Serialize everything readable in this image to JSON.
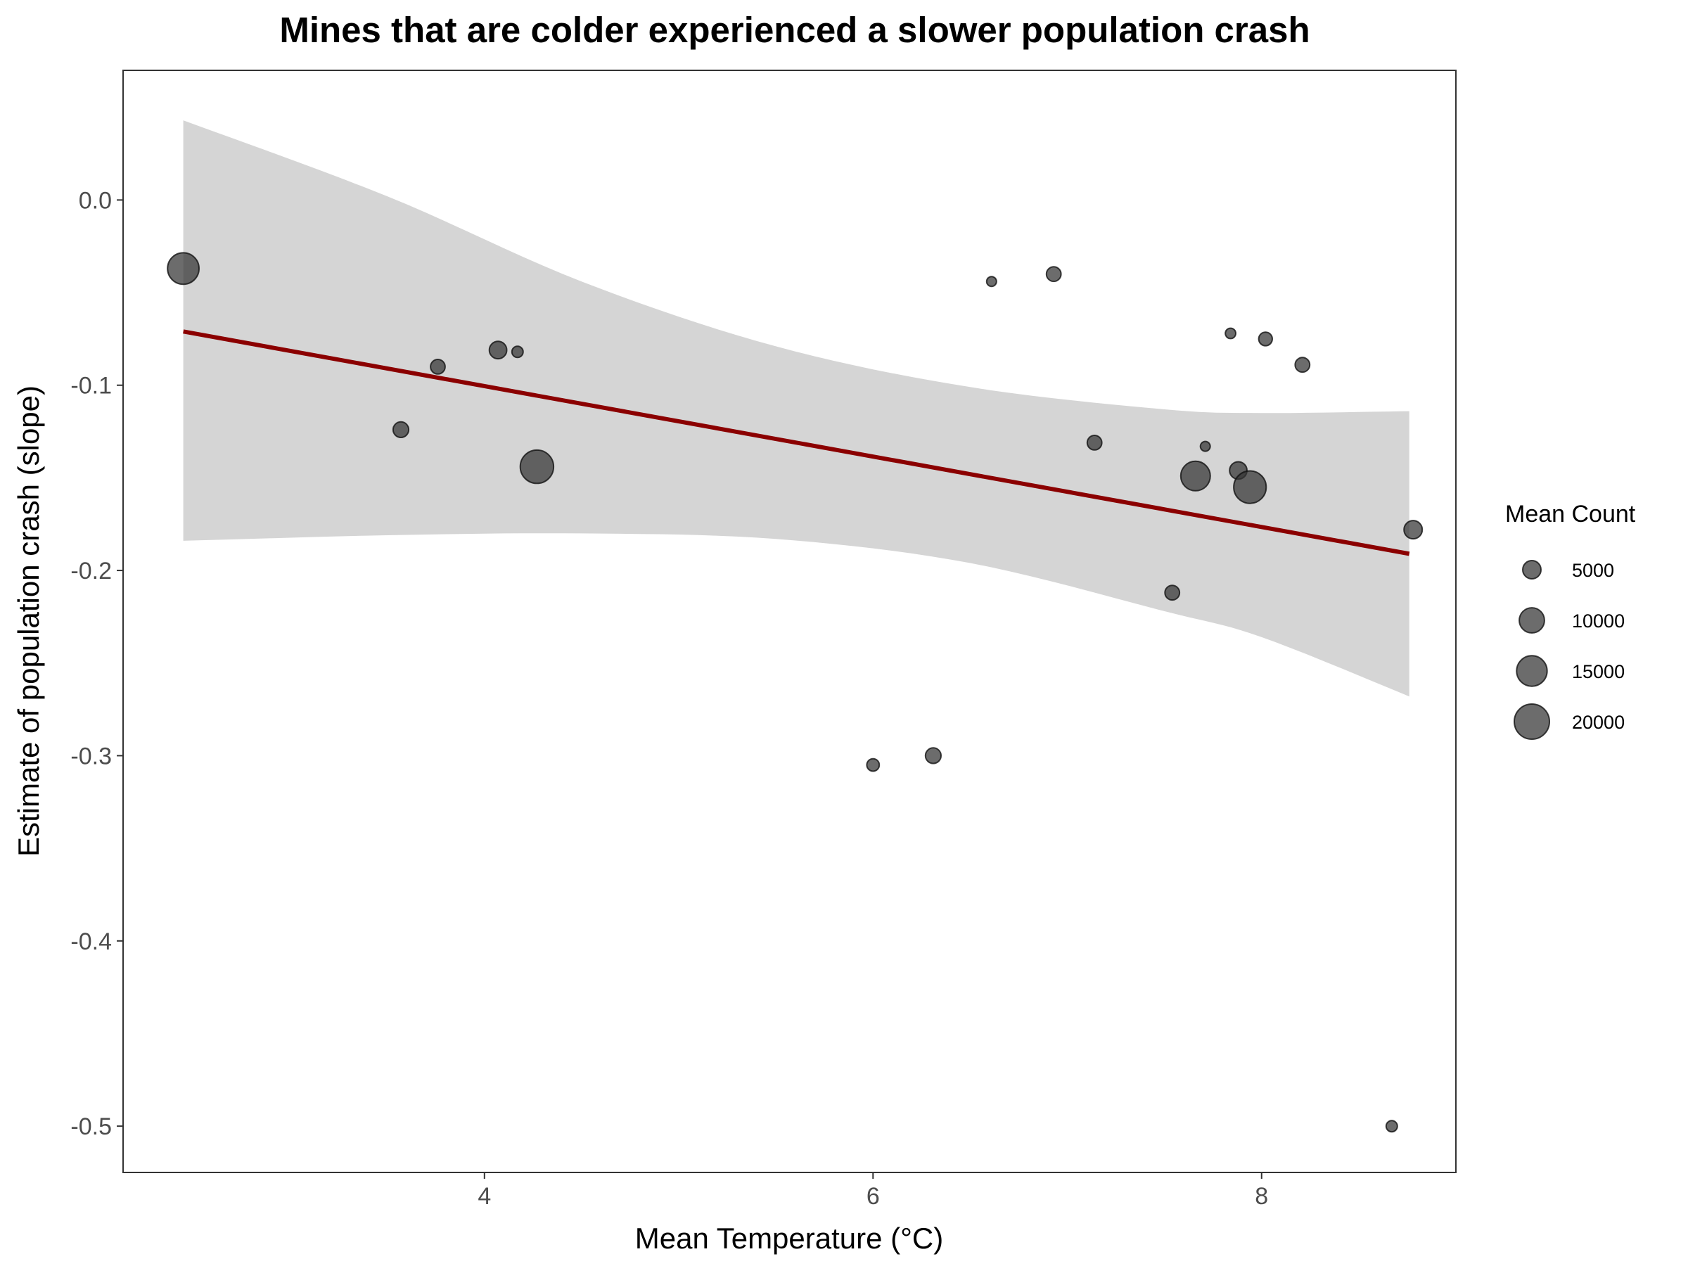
{
  "chart_data": {
    "type": "scatter",
    "title": "Mines that are colder experienced a slower population crash",
    "xlabel": "Mean Temperature (°C)",
    "ylabel": "Estimate of population crash (slope)",
    "xlim": [
      2.14,
      9.0
    ],
    "ylim": [
      -0.525,
      0.07
    ],
    "x_ticks": [
      4,
      6,
      8
    ],
    "x_tick_labels": [
      "4",
      "6",
      "8"
    ],
    "y_ticks": [
      0.0,
      -0.1,
      -0.2,
      -0.3,
      -0.4,
      -0.5
    ],
    "y_tick_labels": [
      "0.0",
      "-0.1",
      "-0.2",
      "-0.3",
      "-0.4",
      "-0.5"
    ],
    "grid": false,
    "legend": {
      "title": "Mean Count",
      "placement": "right",
      "entries": [
        {
          "label": "5000",
          "size": 5000
        },
        {
          "label": "10000",
          "size": 10000
        },
        {
          "label": "15000",
          "size": 15000
        },
        {
          "label": "20000",
          "size": 20000
        }
      ]
    },
    "points": [
      {
        "x": 2.45,
        "y": -0.037,
        "size": 16000
      },
      {
        "x": 3.57,
        "y": -0.124,
        "size": 3500
      },
      {
        "x": 3.76,
        "y": -0.09,
        "size": 3000
      },
      {
        "x": 4.07,
        "y": -0.081,
        "size": 4500
      },
      {
        "x": 4.17,
        "y": -0.082,
        "size": 1500
      },
      {
        "x": 4.27,
        "y": -0.144,
        "size": 18000
      },
      {
        "x": 6.0,
        "y": -0.305,
        "size": 2000
      },
      {
        "x": 6.31,
        "y": -0.3,
        "size": 3500
      },
      {
        "x": 6.61,
        "y": -0.044,
        "size": 1000
      },
      {
        "x": 6.93,
        "y": -0.04,
        "size": 3000
      },
      {
        "x": 7.14,
        "y": -0.131,
        "size": 3000
      },
      {
        "x": 7.54,
        "y": -0.212,
        "size": 3000
      },
      {
        "x": 7.66,
        "y": -0.149,
        "size": 14000
      },
      {
        "x": 7.71,
        "y": -0.133,
        "size": 1000
      },
      {
        "x": 7.84,
        "y": -0.072,
        "size": 1200
      },
      {
        "x": 7.88,
        "y": -0.146,
        "size": 4500
      },
      {
        "x": 7.94,
        "y": -0.155,
        "size": 17000
      },
      {
        "x": 8.02,
        "y": -0.075,
        "size": 2500
      },
      {
        "x": 8.21,
        "y": -0.089,
        "size": 3000
      },
      {
        "x": 8.67,
        "y": -0.5,
        "size": 1500
      },
      {
        "x": 8.78,
        "y": -0.178,
        "size": 5000
      }
    ],
    "fit": {
      "type": "linear",
      "color": "#8b0000",
      "x_range": [
        2.45,
        8.76
      ],
      "line": [
        [
          2.45,
          -0.071
        ],
        [
          8.76,
          -0.191
        ]
      ],
      "ci_upper": [
        [
          2.45,
          0.043
        ],
        [
          3.5,
          0.002
        ],
        [
          4.5,
          -0.044
        ],
        [
          5.5,
          -0.079
        ],
        [
          6.5,
          -0.101
        ],
        [
          7.5,
          -0.113
        ],
        [
          8.0,
          -0.115
        ],
        [
          8.76,
          -0.114
        ]
      ],
      "ci_lower": [
        [
          2.45,
          -0.184
        ],
        [
          3.5,
          -0.181
        ],
        [
          4.5,
          -0.18
        ],
        [
          5.5,
          -0.183
        ],
        [
          6.5,
          -0.196
        ],
        [
          7.5,
          -0.222
        ],
        [
          8.0,
          -0.236
        ],
        [
          8.76,
          -0.268
        ]
      ],
      "ci_color": "#d5d5d5"
    },
    "point_color": "#333333"
  }
}
